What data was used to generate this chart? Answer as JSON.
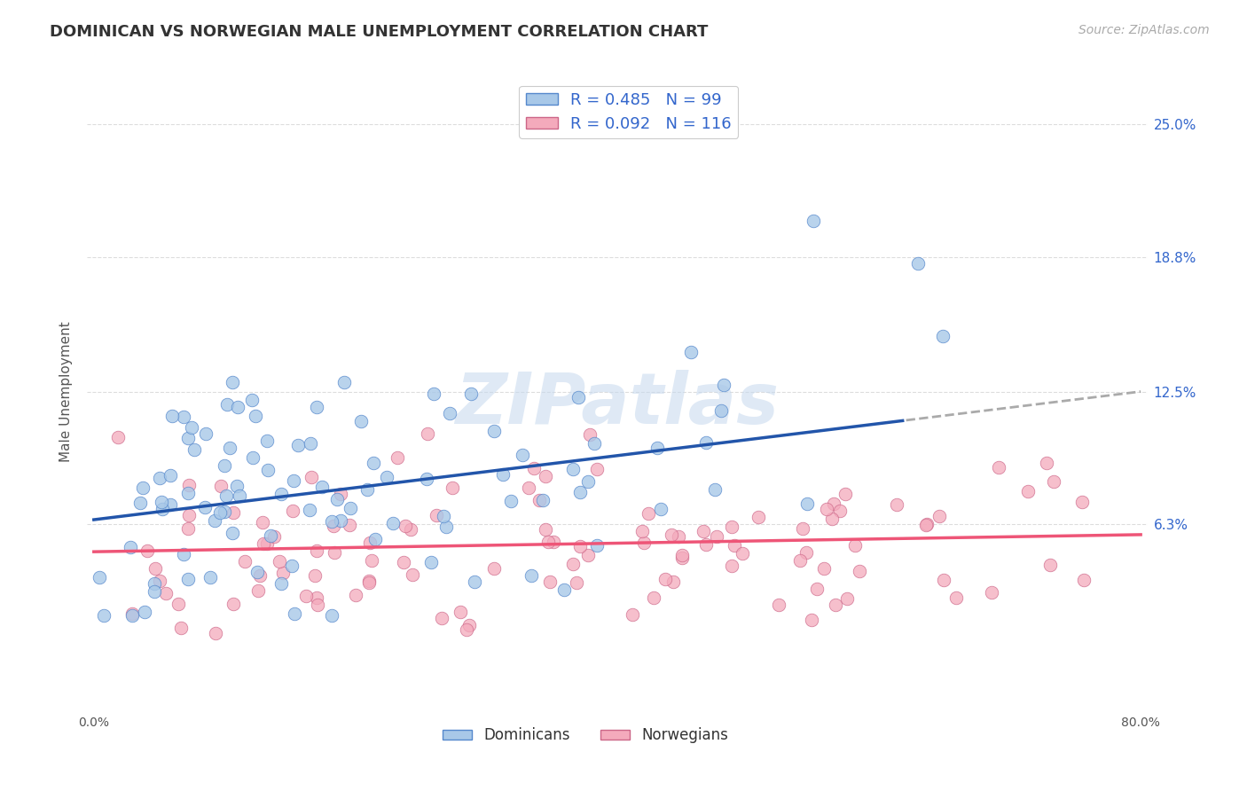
{
  "title": "DOMINICAN VS NORWEGIAN MALE UNEMPLOYMENT CORRELATION CHART",
  "source": "Source: ZipAtlas.com",
  "ylabel": "Male Unemployment",
  "ytick_labels": [
    "6.3%",
    "12.5%",
    "18.8%",
    "25.0%"
  ],
  "ytick_values": [
    0.063,
    0.125,
    0.188,
    0.25
  ],
  "xlim": [
    0.0,
    0.8
  ],
  "ylim": [
    -0.025,
    0.275
  ],
  "dominican_R": 0.485,
  "dominican_N": 99,
  "norwegian_R": 0.092,
  "norwegian_N": 116,
  "dominican_color": "#A8C8E8",
  "dominican_edge_color": "#5588CC",
  "norwegian_color": "#F4AABC",
  "norwegian_edge_color": "#CC6688",
  "dominican_line_color": "#2255AA",
  "dominican_line_dashed_color": "#AAAAAA",
  "norwegian_line_color": "#EE5577",
  "watermark_color": "#C5D8EE",
  "background_color": "#FFFFFF",
  "title_color": "#333333",
  "source_color": "#AAAAAA",
  "legend_label_color": "#3366CC",
  "axis_label_color": "#555555",
  "grid_color": "#DDDDDD",
  "dom_line_intercept": 0.065,
  "dom_line_slope": 0.075,
  "dom_line_dashed_start": 0.62,
  "nor_line_intercept": 0.05,
  "nor_line_slope": 0.01,
  "seed": 12345
}
